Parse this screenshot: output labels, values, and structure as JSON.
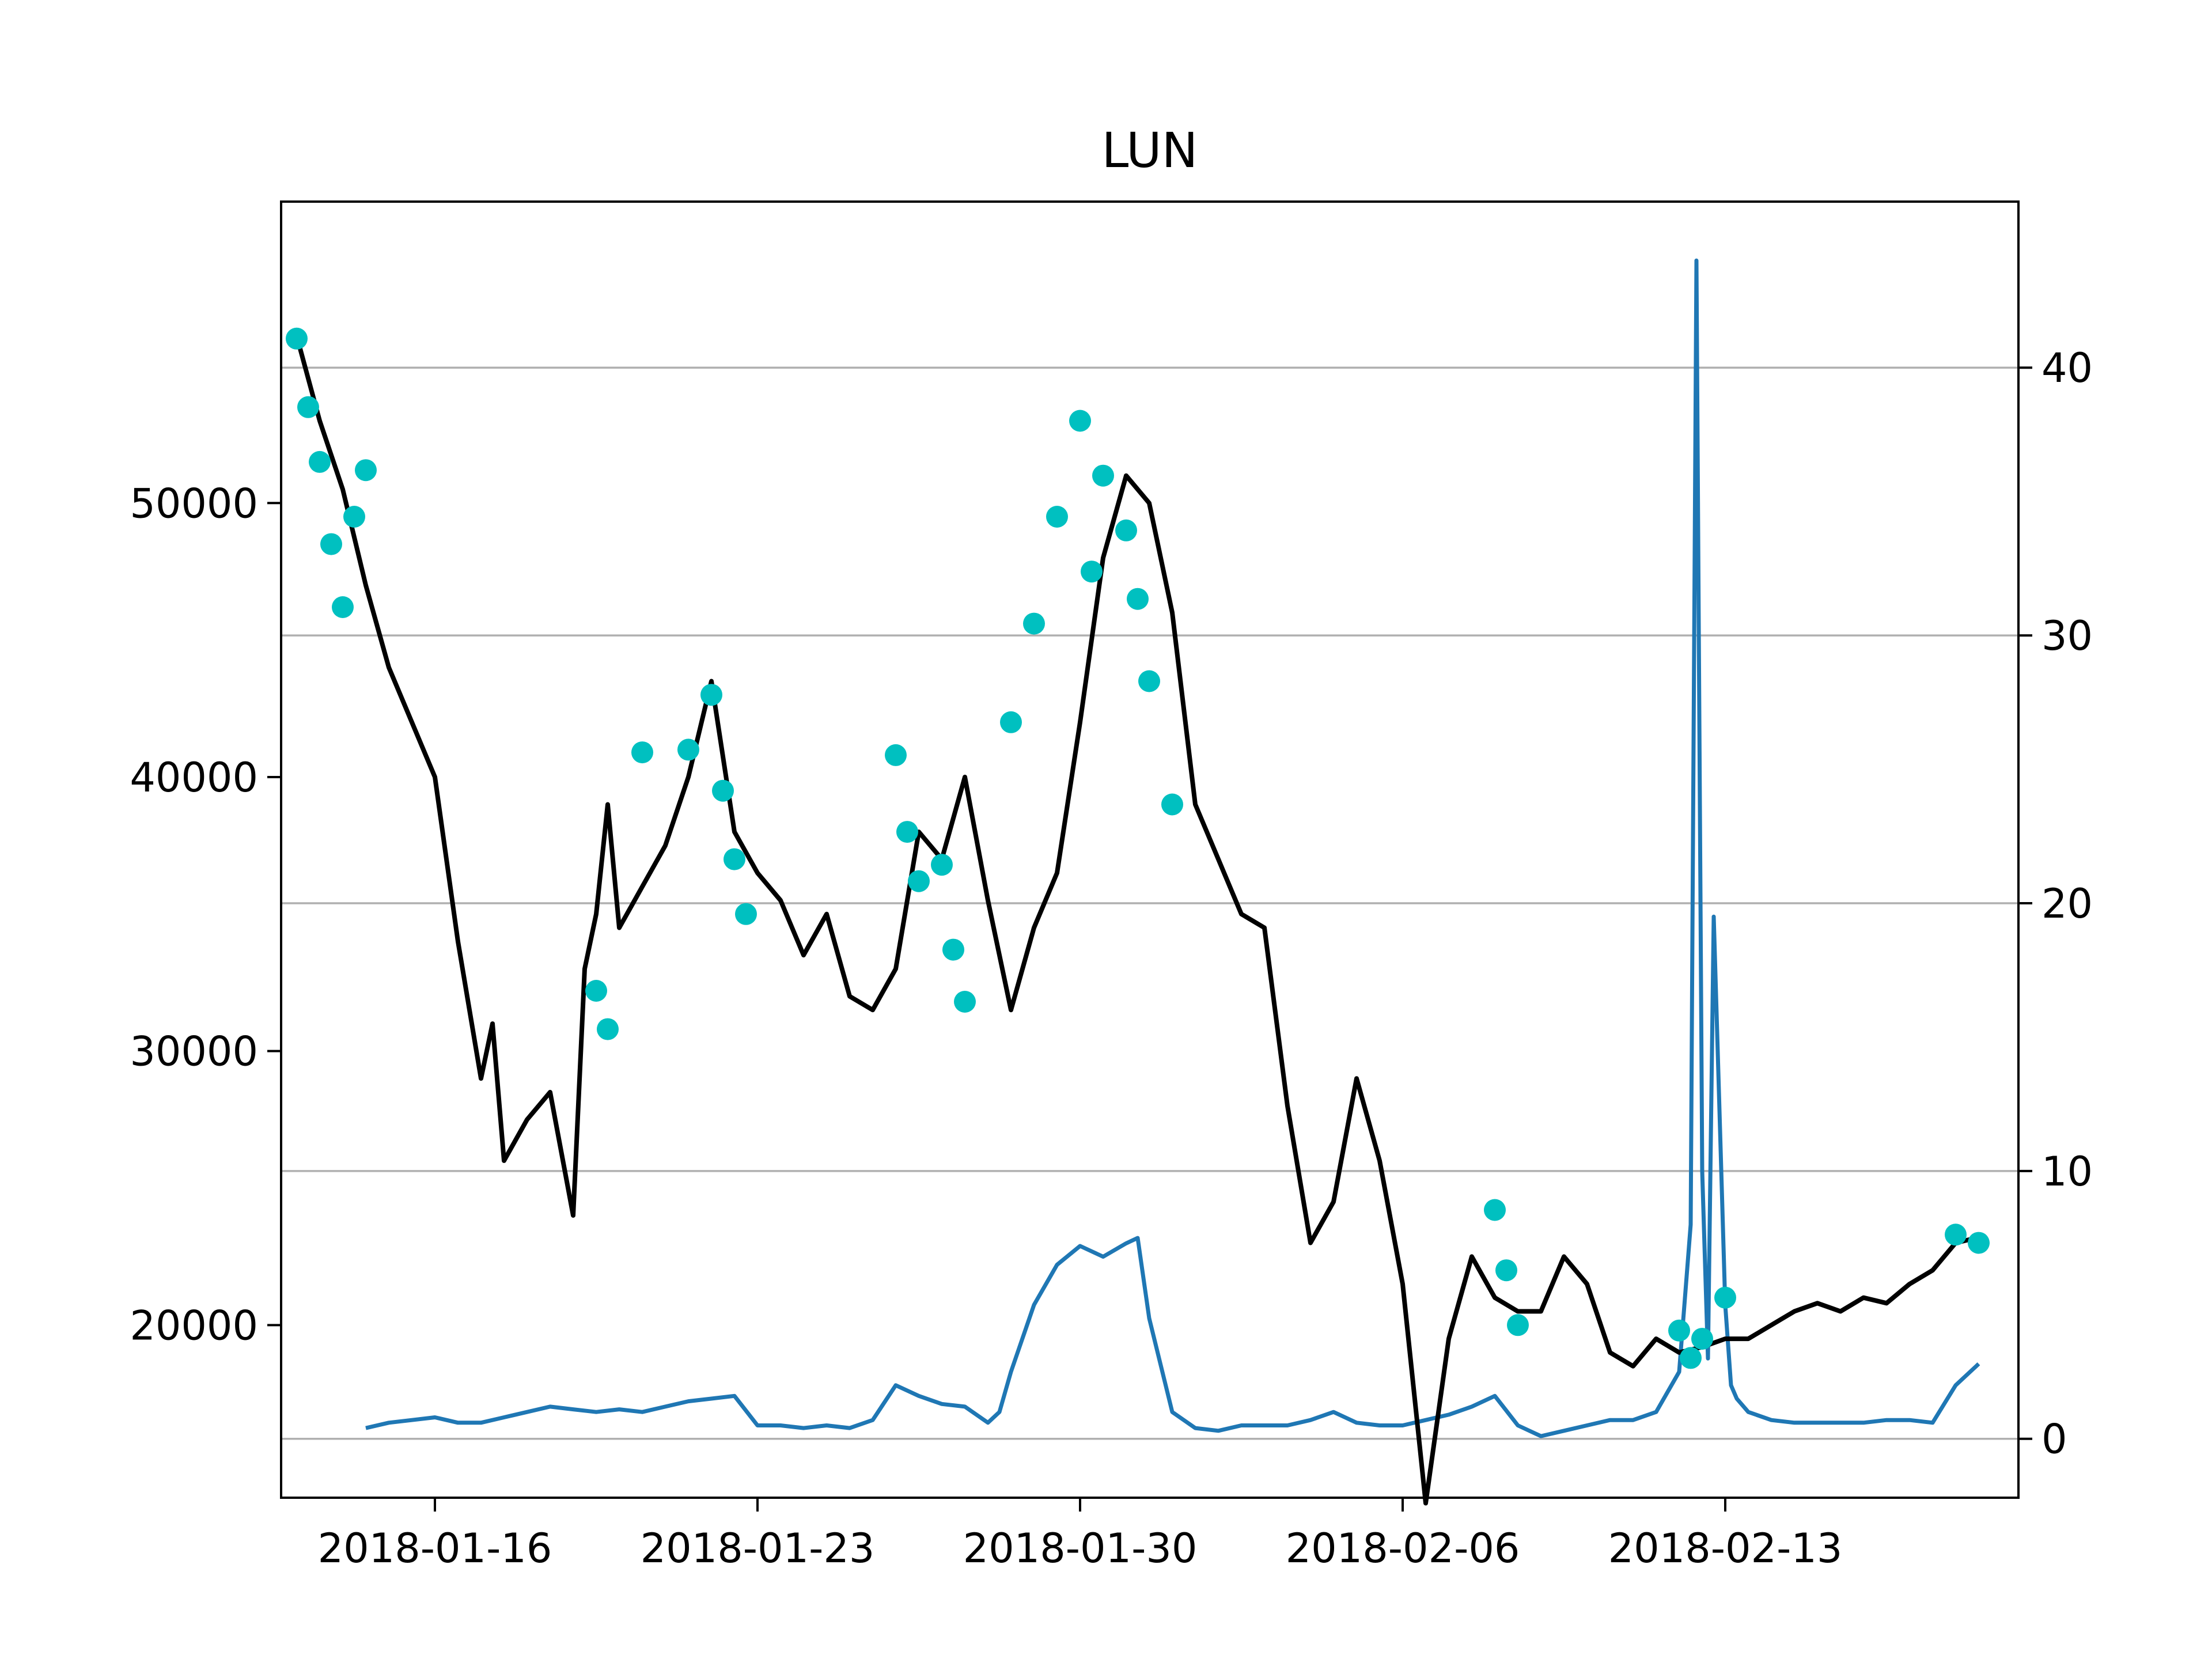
{
  "chart_data": {
    "type": "line",
    "title": "LUN",
    "xlabel": "",
    "ylabel_left": "",
    "ylabel_right": "",
    "x_ticks": [
      "2018-01-16",
      "2018-01-23",
      "2018-01-30",
      "2018-02-06",
      "2018-02-13"
    ],
    "left_axis": {
      "ylim": [
        13700,
        61000
      ],
      "ticks": [
        20000,
        30000,
        40000,
        50000
      ],
      "tick_labels": [
        "20000",
        "30000",
        "40000",
        "50000"
      ]
    },
    "right_axis": {
      "ylim": [
        -2.2,
        46.2
      ],
      "ticks": [
        0,
        10,
        20,
        30,
        40
      ],
      "tick_labels": [
        "0",
        "10",
        "20",
        "30",
        "40"
      ]
    },
    "grid": "horizontal (right-axis ticks)",
    "colors": {
      "price": "#000000",
      "markers": "#00c0c0",
      "secondary": "#1f77b4",
      "grid": "#b0b0b0"
    },
    "series": [
      {
        "axis": "left",
        "style": "line",
        "x": [
          "2018-01-13",
          "2018-01-13T12",
          "2018-01-14",
          "2018-01-14T12",
          "2018-01-15",
          "2018-01-15T12",
          "2018-01-16",
          "2018-01-16T12",
          "2018-01-17",
          "2018-01-17T06",
          "2018-01-17T12",
          "2018-01-18",
          "2018-01-18T12",
          "2018-01-19",
          "2018-01-19T06",
          "2018-01-19T12",
          "2018-01-19T18",
          "2018-01-20",
          "2018-01-20T12",
          "2018-01-21",
          "2018-01-21T12",
          "2018-01-22",
          "2018-01-22T12",
          "2018-01-23",
          "2018-01-23T12",
          "2018-01-24",
          "2018-01-24T12",
          "2018-01-25",
          "2018-01-25T12",
          "2018-01-26",
          "2018-01-26T12",
          "2018-01-27",
          "2018-01-27T12",
          "2018-01-28",
          "2018-01-28T12",
          "2018-01-29",
          "2018-01-29T12",
          "2018-01-30",
          "2018-01-30T12",
          "2018-01-31",
          "2018-01-31T12",
          "2018-02-01",
          "2018-02-01T12",
          "2018-02-02",
          "2018-02-02T12",
          "2018-02-03",
          "2018-02-03T12",
          "2018-02-04",
          "2018-02-04T12",
          "2018-02-05",
          "2018-02-05T12",
          "2018-02-06",
          "2018-02-06T12",
          "2018-02-07",
          "2018-02-07T12",
          "2018-02-08",
          "2018-02-08T12",
          "2018-02-09",
          "2018-02-09T12",
          "2018-02-10",
          "2018-02-10T12",
          "2018-02-11",
          "2018-02-11T12",
          "2018-02-12",
          "2018-02-12T12",
          "2018-02-13",
          "2018-02-13T12",
          "2018-02-14",
          "2018-02-14T12",
          "2018-02-15",
          "2018-02-15T12",
          "2018-02-16",
          "2018-02-16T12",
          "2018-02-17",
          "2018-02-17T12",
          "2018-02-18",
          "2018-02-18T12"
        ],
        "values": [
          56100,
          53000,
          50500,
          47000,
          44000,
          42000,
          40000,
          34000,
          29000,
          31000,
          26000,
          27500,
          28500,
          24000,
          33000,
          35000,
          39000,
          34500,
          36000,
          37500,
          40000,
          43500,
          38000,
          36500,
          35500,
          33500,
          35000,
          32000,
          31500,
          33000,
          38000,
          37000,
          40000,
          35500,
          31500,
          34500,
          36500,
          42000,
          48000,
          51000,
          50000,
          46000,
          39000,
          37000,
          35000,
          34500,
          28000,
          23000,
          24500,
          29000,
          26000,
          21500,
          13500,
          19500,
          22500,
          21000,
          20500,
          20500,
          22500,
          21500,
          19000,
          18500,
          19500,
          19000,
          19200,
          19500,
          19500,
          20000,
          20500,
          20800,
          20500,
          21000,
          20800,
          21500,
          22000,
          23000,
          23200
        ]
      },
      {
        "axis": "left",
        "style": "markers",
        "x": [
          "2018-01-13",
          "2018-01-13T06",
          "2018-01-13T12",
          "2018-01-13T18",
          "2018-01-14",
          "2018-01-14T06",
          "2018-01-14T12",
          "2018-01-19T12",
          "2018-01-19T18",
          "2018-01-20T12",
          "2018-01-21T12",
          "2018-01-22",
          "2018-01-22T06",
          "2018-01-22T12",
          "2018-01-22T18",
          "2018-01-26",
          "2018-01-26T06",
          "2018-01-26T12",
          "2018-01-27",
          "2018-01-27T06",
          "2018-01-27T12",
          "2018-01-28T12",
          "2018-01-29",
          "2018-01-29T12",
          "2018-01-30",
          "2018-01-30T06",
          "2018-01-30T12",
          "2018-01-31",
          "2018-01-31T06",
          "2018-01-31T12",
          "2018-02-01",
          "2018-02-08",
          "2018-02-08T06",
          "2018-02-08T12",
          "2018-02-12",
          "2018-02-12T06",
          "2018-02-12T12",
          "2018-02-13",
          "2018-02-18",
          "2018-02-18T12"
        ],
        "values": [
          56000,
          53500,
          51500,
          48500,
          46200,
          49500,
          51200,
          32200,
          30800,
          40900,
          41000,
          43000,
          39500,
          37000,
          35000,
          40800,
          38000,
          36200,
          36800,
          33700,
          31800,
          42000,
          45600,
          49500,
          53000,
          47500,
          51000,
          49000,
          46500,
          43500,
          39000,
          24200,
          22000,
          20000,
          19800,
          18800,
          19500,
          21000,
          23300,
          23000
        ]
      },
      {
        "axis": "right",
        "style": "line",
        "x": [
          "2018-01-14T12",
          "2018-01-15",
          "2018-01-15T12",
          "2018-01-16",
          "2018-01-16T12",
          "2018-01-17",
          "2018-01-17T12",
          "2018-01-18",
          "2018-01-18T12",
          "2018-01-19",
          "2018-01-19T12",
          "2018-01-20",
          "2018-01-20T12",
          "2018-01-21",
          "2018-01-21T12",
          "2018-01-22",
          "2018-01-22T12",
          "2018-01-23",
          "2018-01-23T12",
          "2018-01-24",
          "2018-01-24T12",
          "2018-01-25",
          "2018-01-25T12",
          "2018-01-26",
          "2018-01-26T12",
          "2018-01-27",
          "2018-01-27T12",
          "2018-01-28",
          "2018-01-28T06",
          "2018-01-28T12",
          "2018-01-29",
          "2018-01-29T12",
          "2018-01-30",
          "2018-01-30T12",
          "2018-01-31",
          "2018-01-31T06",
          "2018-01-31T12",
          "2018-02-01",
          "2018-02-01T12",
          "2018-02-02",
          "2018-02-02T12",
          "2018-02-03",
          "2018-02-03T12",
          "2018-02-04",
          "2018-02-04T12",
          "2018-02-05",
          "2018-02-05T12",
          "2018-02-06",
          "2018-02-06T12",
          "2018-02-07",
          "2018-02-07T12",
          "2018-02-08",
          "2018-02-08T12",
          "2018-02-09",
          "2018-02-09T12",
          "2018-02-10",
          "2018-02-10T12",
          "2018-02-11",
          "2018-02-11T12",
          "2018-02-12",
          "2018-02-12T06",
          "2018-02-12T09",
          "2018-02-12T12",
          "2018-02-12T15",
          "2018-02-12T18",
          "2018-02-13",
          "2018-02-13T03",
          "2018-02-13T06",
          "2018-02-13T12",
          "2018-02-14",
          "2018-02-14T12",
          "2018-02-15",
          "2018-02-15T12",
          "2018-02-16",
          "2018-02-16T12",
          "2018-02-17",
          "2018-02-17T12",
          "2018-02-18",
          "2018-02-18T12"
        ],
        "values": [
          0.4,
          0.6,
          0.7,
          0.8,
          0.6,
          0.6,
          0.8,
          1.0,
          1.2,
          1.1,
          1.0,
          1.1,
          1.0,
          1.2,
          1.4,
          1.5,
          1.6,
          0.5,
          0.5,
          0.4,
          0.5,
          0.4,
          0.7,
          2.0,
          1.6,
          1.3,
          1.2,
          0.6,
          1.0,
          2.5,
          5.0,
          6.5,
          7.2,
          6.8,
          7.3,
          7.5,
          4.5,
          1.0,
          0.4,
          0.3,
          0.5,
          0.5,
          0.5,
          0.7,
          1.0,
          0.6,
          0.5,
          0.5,
          0.7,
          0.9,
          1.2,
          1.6,
          0.5,
          0.1,
          0.3,
          0.5,
          0.7,
          0.7,
          1.0,
          2.5,
          8.0,
          44.0,
          10.0,
          3.0,
          19.5,
          5.0,
          2.0,
          1.5,
          1.0,
          0.7,
          0.6,
          0.6,
          0.6,
          0.6,
          0.7,
          0.7,
          0.6,
          2.0,
          2.8
        ]
      }
    ]
  }
}
